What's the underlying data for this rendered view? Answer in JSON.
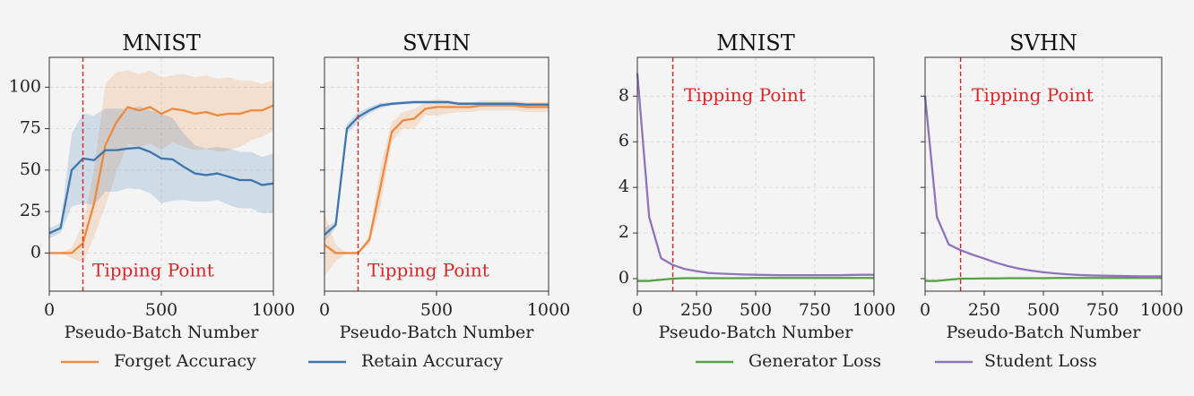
{
  "legends": [
    {
      "entries": [
        {
          "label": "Forget Accuracy",
          "color": "#ed8a3f"
        },
        {
          "label": "Retain Accuracy",
          "color": "#3d76ad"
        }
      ]
    },
    {
      "entries": [
        {
          "label": "Generator Loss",
          "color": "#55a043"
        },
        {
          "label": "Student Loss",
          "color": "#9073bd"
        }
      ]
    }
  ],
  "chart_data": [
    {
      "type": "line",
      "title": "MNIST",
      "xlabel": "Pseudo-Batch Number",
      "ylabel": "",
      "xlim": [
        0,
        1000
      ],
      "ylim": [
        -23,
        118
      ],
      "xticks": [
        0,
        500,
        1000
      ],
      "yticks": [
        0,
        25,
        50,
        75,
        100
      ],
      "show_ytick_labels": true,
      "grid": true,
      "legend": "bottom",
      "annotation": {
        "text": "Tipping Point",
        "x_line": 150,
        "text_x": 192,
        "text_y": -11,
        "color": "#d62728"
      },
      "x": [
        0,
        50,
        100,
        150,
        200,
        250,
        300,
        350,
        400,
        450,
        500,
        550,
        600,
        650,
        700,
        750,
        800,
        850,
        900,
        950,
        1000
      ],
      "series": [
        {
          "name": "Forget Accuracy",
          "color": "#ed8a3f",
          "y": [
            0,
            0,
            0,
            6,
            30,
            65,
            79,
            88,
            86,
            88,
            84,
            87,
            86,
            84,
            85,
            83,
            84,
            84,
            86,
            86,
            89
          ],
          "std": [
            0,
            0,
            3,
            12,
            20,
            37,
            30,
            22,
            22,
            22,
            22,
            20,
            22,
            22,
            22,
            22,
            22,
            20,
            18,
            16,
            15
          ]
        },
        {
          "name": "Retain Accuracy",
          "color": "#3d76ad",
          "y": [
            12,
            15,
            50,
            57,
            56,
            62,
            62,
            63,
            63.5,
            61,
            57,
            56.5,
            52,
            48,
            47,
            48,
            46,
            44,
            44,
            41,
            42
          ],
          "std": [
            3,
            3,
            22,
            27,
            27,
            25,
            25,
            24,
            25,
            25,
            27,
            25,
            20,
            17,
            16,
            16,
            17,
            17,
            17,
            17,
            18
          ]
        }
      ]
    },
    {
      "type": "line",
      "title": "SVHN",
      "xlabel": "Pseudo-Batch Number",
      "ylabel": "",
      "xlim": [
        0,
        1000
      ],
      "ylim": [
        -23,
        118
      ],
      "xticks": [
        0,
        500,
        1000
      ],
      "yticks": [
        0,
        25,
        50,
        75,
        100
      ],
      "show_ytick_labels": false,
      "grid": true,
      "legend": "bottom",
      "annotation": {
        "text": "Tipping Point",
        "x_line": 150,
        "text_x": 192,
        "text_y": -11,
        "color": "#d62728"
      },
      "x": [
        0,
        50,
        100,
        150,
        200,
        250,
        300,
        350,
        400,
        450,
        500,
        550,
        600,
        650,
        700,
        750,
        800,
        850,
        900,
        950,
        1000
      ],
      "series": [
        {
          "name": "Forget Accuracy",
          "color": "#ed8a3f",
          "y": [
            5,
            0,
            0,
            0,
            8,
            40,
            73,
            80,
            81,
            87,
            88,
            88,
            88,
            88,
            89,
            89,
            89,
            89,
            88,
            88,
            88
          ],
          "std": [
            19,
            5,
            0,
            0,
            3,
            12,
            6,
            5,
            6,
            4,
            5,
            4,
            3,
            3,
            3,
            3,
            3,
            3,
            3,
            3,
            3
          ]
        },
        {
          "name": "Retain Accuracy",
          "color": "#3d76ad",
          "y": [
            11,
            17,
            75,
            82,
            86,
            89,
            90,
            90.5,
            91,
            91,
            91,
            91,
            90,
            90,
            90,
            90,
            90,
            90,
            89.5,
            89.5,
            89.5
          ],
          "std": [
            4,
            2,
            3,
            3,
            2,
            1.5,
            1,
            1,
            1,
            1,
            1,
            1,
            1,
            1,
            1,
            1,
            1,
            1,
            1,
            1,
            1
          ]
        }
      ]
    },
    {
      "type": "line",
      "title": "MNIST",
      "xlabel": "Pseudo-Batch Number",
      "ylabel": "",
      "xlim": [
        0,
        1000
      ],
      "ylim": [
        -0.55,
        9.7
      ],
      "xticks": [
        0,
        250,
        500,
        750,
        1000
      ],
      "yticks": [
        0,
        2,
        4,
        6,
        8
      ],
      "show_ytick_labels": true,
      "grid": true,
      "legend": "bottom",
      "annotation": {
        "text": "Tipping Point",
        "x_line": 150,
        "text_x": 197,
        "text_y": 8,
        "color": "#d62728"
      },
      "x": [
        0,
        50,
        100,
        150,
        200,
        250,
        300,
        350,
        400,
        450,
        500,
        550,
        600,
        650,
        700,
        750,
        800,
        850,
        900,
        950,
        1000
      ],
      "series": [
        {
          "name": "Generator Loss",
          "color": "#55a043",
          "y": [
            -0.1,
            -0.1,
            -0.05,
            0,
            0.02,
            0.02,
            0.02,
            0.02,
            0.02,
            0.02,
            0.03,
            0.03,
            0.03,
            0.03,
            0.03,
            0.03,
            0.03,
            0.03,
            0.03,
            0.03,
            0.03
          ]
        },
        {
          "name": "Student Loss",
          "color": "#9073bd",
          "y": [
            9.0,
            2.7,
            0.9,
            0.6,
            0.42,
            0.33,
            0.25,
            0.22,
            0.2,
            0.18,
            0.17,
            0.16,
            0.15,
            0.15,
            0.15,
            0.15,
            0.15,
            0.15,
            0.16,
            0.17,
            0.17
          ]
        }
      ]
    },
    {
      "type": "line",
      "title": "SVHN",
      "xlabel": "Pseudo-Batch Number",
      "ylabel": "",
      "xlim": [
        0,
        1000
      ],
      "ylim": [
        -0.55,
        9.7
      ],
      "xticks": [
        0,
        250,
        500,
        750,
        1000
      ],
      "yticks": [
        0,
        2,
        4,
        6,
        8
      ],
      "show_ytick_labels": false,
      "grid": true,
      "legend": "bottom",
      "annotation": {
        "text": "Tipping Point",
        "x_line": 150,
        "text_x": 197,
        "text_y": 8,
        "color": "#d62728"
      },
      "x": [
        0,
        50,
        100,
        150,
        200,
        250,
        300,
        350,
        400,
        450,
        500,
        550,
        600,
        650,
        700,
        750,
        800,
        850,
        900,
        950,
        1000
      ],
      "series": [
        {
          "name": "Generator Loss",
          "color": "#55a043",
          "y": [
            -0.1,
            -0.1,
            -0.05,
            0,
            0,
            0.01,
            0.01,
            0.02,
            0.02,
            0.02,
            0.02,
            0.03,
            0.03,
            0.03,
            0.03,
            0.03,
            0.03,
            0.03,
            0.03,
            0.03,
            0.03
          ]
        },
        {
          "name": "Student Loss",
          "color": "#9073bd",
          "y": [
            8.0,
            2.7,
            1.5,
            1.25,
            1.05,
            0.88,
            0.7,
            0.55,
            0.43,
            0.35,
            0.28,
            0.23,
            0.19,
            0.16,
            0.14,
            0.13,
            0.12,
            0.11,
            0.1,
            0.1,
            0.1
          ]
        }
      ]
    }
  ]
}
